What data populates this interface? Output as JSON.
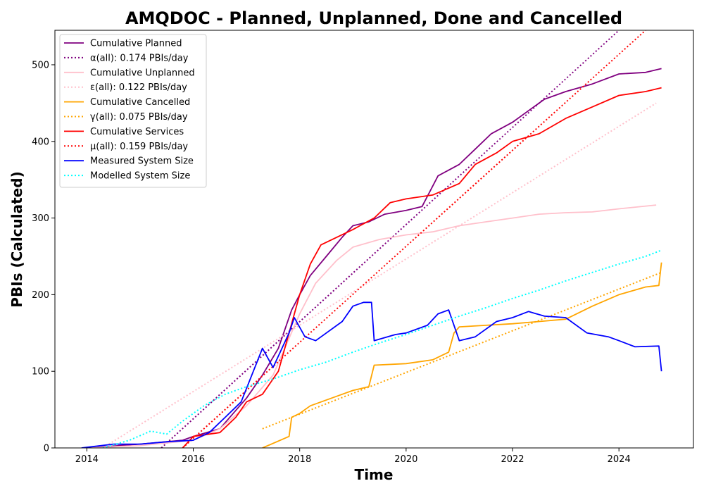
{
  "chart_data": {
    "type": "line",
    "title": "AMQDOC - Planned, Unplanned, Done  and Cancelled",
    "xlabel": "Time",
    "ylabel": "PBIs (Calculated)",
    "xlim": [
      2013.4,
      2025.4
    ],
    "ylim": [
      0,
      545
    ],
    "xticks": [
      2014,
      2016,
      2018,
      2020,
      2022,
      2024
    ],
    "yticks": [
      0,
      100,
      200,
      300,
      400,
      500
    ],
    "grid": false,
    "legend_position": "upper-left",
    "series": [
      {
        "name": "Cumulative Planned",
        "color": "#800080",
        "style": "solid",
        "x": [
          2014.0,
          2015.0,
          2015.8,
          2016.0,
          2016.5,
          2017.0,
          2017.3,
          2017.6,
          2017.85,
          2018.0,
          2018.2,
          2018.5,
          2018.8,
          2019.0,
          2019.3,
          2019.6,
          2020.0,
          2020.3,
          2020.6,
          2021.0,
          2021.3,
          2021.6,
          2022.0,
          2022.3,
          2022.6,
          2023.0,
          2023.5,
          2024.0,
          2024.5,
          2024.8
        ],
        "y": [
          0,
          5,
          10,
          15,
          25,
          65,
          95,
          130,
          180,
          200,
          225,
          250,
          275,
          290,
          295,
          305,
          310,
          315,
          355,
          370,
          390,
          410,
          425,
          440,
          455,
          465,
          475,
          488,
          490,
          495
        ]
      },
      {
        "name": "α(all): 0.174 PBIs/day",
        "color": "#800080",
        "style": "dotted",
        "x": [
          2015.4,
          2024.0
        ],
        "y": [
          0,
          545
        ]
      },
      {
        "name": "Cumulative Unplanned",
        "color": "#ffc0cb",
        "style": "solid",
        "x": [
          2014.0,
          2015.0,
          2016.0,
          2016.5,
          2017.0,
          2017.5,
          2018.0,
          2018.3,
          2018.7,
          2019.0,
          2019.5,
          2020.0,
          2020.5,
          2021.0,
          2021.5,
          2022.0,
          2022.5,
          2023.0,
          2023.5,
          2024.0,
          2024.7
        ],
        "y": [
          0,
          3,
          10,
          25,
          55,
          95,
          175,
          215,
          245,
          262,
          272,
          278,
          282,
          290,
          295,
          300,
          305,
          307,
          308,
          312,
          317
        ]
      },
      {
        "name": "ε(all): 0.122 PBIs/day",
        "color": "#ffc0cb",
        "style": "dotted",
        "x": [
          2014.3,
          2024.7
        ],
        "y": [
          0,
          450
        ]
      },
      {
        "name": "Cumulative Cancelled",
        "color": "#ffa500",
        "style": "solid",
        "x": [
          2017.3,
          2017.8,
          2017.85,
          2018.0,
          2018.2,
          2018.8,
          2019.0,
          2019.3,
          2019.4,
          2020.0,
          2020.5,
          2020.8,
          2020.9,
          2021.0,
          2021.5,
          2022.0,
          2022.5,
          2023.0,
          2023.5,
          2024.0,
          2024.5,
          2024.75,
          2024.8
        ],
        "y": [
          0,
          15,
          40,
          45,
          55,
          70,
          75,
          80,
          108,
          110,
          115,
          125,
          150,
          158,
          160,
          162,
          165,
          168,
          185,
          200,
          210,
          212,
          242
        ]
      },
      {
        "name": "γ(all): 0.075 PBIs/day",
        "color": "#ffa500",
        "style": "dotted",
        "x": [
          2017.3,
          2024.8
        ],
        "y": [
          25,
          229
        ]
      },
      {
        "name": "Cumulative Services",
        "color": "#ff0000",
        "style": "solid",
        "x": [
          2015.8,
          2016.0,
          2016.5,
          2016.8,
          2017.0,
          2017.3,
          2017.6,
          2017.8,
          2018.0,
          2018.2,
          2018.4,
          2018.7,
          2019.0,
          2019.4,
          2019.7,
          2020.0,
          2020.5,
          2021.0,
          2021.3,
          2021.7,
          2022.0,
          2022.5,
          2023.0,
          2023.5,
          2024.0,
          2024.5,
          2024.8
        ],
        "y": [
          0,
          15,
          20,
          40,
          60,
          70,
          100,
          150,
          200,
          240,
          265,
          275,
          285,
          300,
          320,
          325,
          330,
          345,
          370,
          385,
          400,
          410,
          430,
          445,
          460,
          465,
          470
        ]
      },
      {
        "name": "μ(all): 0.159 PBIs/day",
        "color": "#ff0000",
        "style": "dotted",
        "x": [
          2015.8,
          2024.5
        ],
        "y": [
          0,
          545
        ]
      },
      {
        "name": "Measured System Size",
        "color": "#0000ff",
        "style": "solid",
        "x": [
          2013.9,
          2014.5,
          2015.0,
          2015.5,
          2016.0,
          2016.3,
          2016.6,
          2016.9,
          2017.1,
          2017.3,
          2017.5,
          2017.8,
          2017.9,
          2018.1,
          2018.3,
          2018.5,
          2018.8,
          2019.0,
          2019.2,
          2019.35,
          2019.4,
          2019.8,
          2020.0,
          2020.4,
          2020.6,
          2020.8,
          2021.0,
          2021.3,
          2021.7,
          2022.0,
          2022.3,
          2022.6,
          2023.0,
          2023.4,
          2023.8,
          2024.0,
          2024.3,
          2024.75,
          2024.8
        ],
        "y": [
          0,
          5,
          5,
          8,
          10,
          20,
          40,
          60,
          95,
          130,
          105,
          150,
          170,
          145,
          140,
          150,
          165,
          185,
          190,
          190,
          140,
          148,
          150,
          160,
          175,
          180,
          140,
          145,
          165,
          170,
          178,
          172,
          170,
          150,
          145,
          140,
          132,
          133,
          100
        ]
      },
      {
        "name": "Modelled System Size",
        "color": "#00ffff",
        "style": "dotted",
        "x": [
          2014.3,
          2014.8,
          2015.2,
          2015.5,
          2015.8,
          2016.2,
          2016.6,
          2017.0,
          2017.5,
          2018.0,
          2018.5,
          2019.0,
          2019.5,
          2020.0,
          2020.5,
          2021.0,
          2021.5,
          2022.0,
          2022.5,
          2023.0,
          2023.5,
          2024.0,
          2024.5,
          2024.8
        ],
        "y": [
          0,
          10,
          22,
          18,
          35,
          55,
          70,
          80,
          90,
          102,
          112,
          125,
          137,
          148,
          160,
          172,
          183,
          195,
          206,
          218,
          229,
          240,
          250,
          258
        ]
      }
    ]
  }
}
